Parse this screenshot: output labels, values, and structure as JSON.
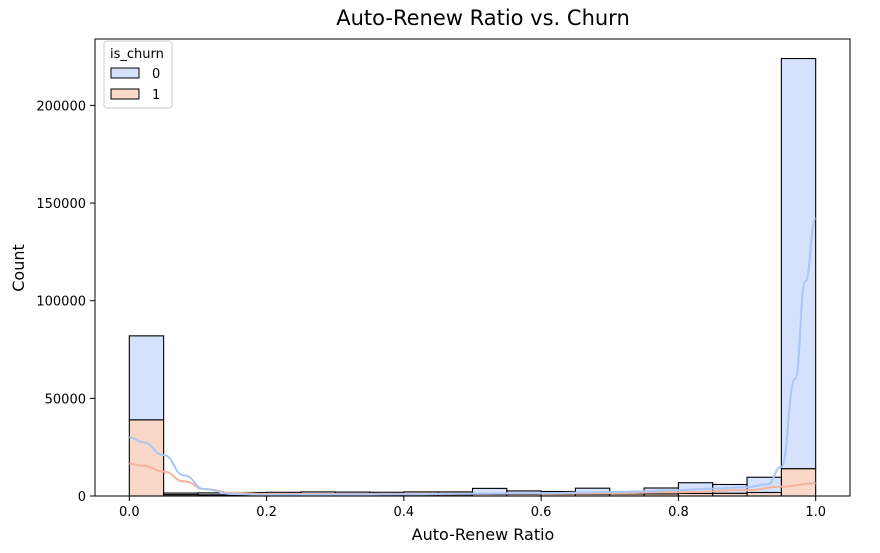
{
  "chart_data": {
    "type": "histogram",
    "title": "Auto-Renew Ratio vs. Churn",
    "xlabel": "Auto-Renew Ratio",
    "ylabel": "Count",
    "xlim": [
      -0.05,
      1.05
    ],
    "ylim": [
      0,
      234000
    ],
    "x_ticks": [
      0.0,
      0.2,
      0.4,
      0.6,
      0.8,
      1.0
    ],
    "x_tick_labels": [
      "0.0",
      "0.2",
      "0.4",
      "0.6",
      "0.8",
      "1.0"
    ],
    "y_ticks": [
      0,
      50000,
      100000,
      150000,
      200000
    ],
    "y_tick_labels": [
      "0",
      "50000",
      "100000",
      "150000",
      "200000"
    ],
    "stacked": true,
    "bins": [
      0.0,
      0.05,
      0.1,
      0.15,
      0.2,
      0.25,
      0.3,
      0.35,
      0.4,
      0.45,
      0.5,
      0.55,
      0.6,
      0.65,
      0.7,
      0.75,
      0.8,
      0.85,
      0.9,
      0.95,
      1.0
    ],
    "legend": {
      "title": "is_churn",
      "position": "upper-left"
    },
    "series": [
      {
        "name": "1",
        "fill": "#f9d7c9",
        "line": "#f4b49b",
        "values": [
          39000,
          700,
          600,
          500,
          500,
          500,
          500,
          600,
          700,
          700,
          900,
          900,
          1000,
          1000,
          1100,
          1100,
          1300,
          1400,
          1800,
          14000
        ],
        "kde": [
          [
            0.0,
            16500
          ],
          [
            0.02,
            15500
          ],
          [
            0.05,
            12500
          ],
          [
            0.08,
            7500
          ],
          [
            0.11,
            3500
          ],
          [
            0.15,
            1600
          ],
          [
            0.2,
            1100
          ],
          [
            0.3,
            1000
          ],
          [
            0.4,
            1100
          ],
          [
            0.5,
            1200
          ],
          [
            0.6,
            1300
          ],
          [
            0.7,
            1500
          ],
          [
            0.8,
            1900
          ],
          [
            0.9,
            3000
          ],
          [
            0.95,
            4800
          ],
          [
            1.0,
            6500
          ]
        ]
      },
      {
        "name": "0",
        "fill": "#d4e2fd",
        "line": "#abc6f5",
        "values": [
          43000,
          800,
          1000,
          1300,
          1400,
          1600,
          1500,
          1300,
          1400,
          1400,
          3000,
          1700,
          1300,
          3000,
          1000,
          3000,
          5500,
          4500,
          7800,
          210000
        ],
        "kde": [
          [
            0.0,
            30000
          ],
          [
            0.02,
            27500
          ],
          [
            0.05,
            21000
          ],
          [
            0.08,
            10500
          ],
          [
            0.11,
            3500
          ],
          [
            0.15,
            1000
          ],
          [
            0.2,
            600
          ],
          [
            0.3,
            700
          ],
          [
            0.4,
            900
          ],
          [
            0.5,
            1200
          ],
          [
            0.6,
            1500
          ],
          [
            0.7,
            2000
          ],
          [
            0.75,
            2400
          ],
          [
            0.8,
            3000
          ],
          [
            0.85,
            3800
          ],
          [
            0.9,
            4500
          ],
          [
            0.93,
            6000
          ],
          [
            0.95,
            15000
          ],
          [
            0.97,
            60000
          ],
          [
            0.985,
            110000
          ],
          [
            1.0,
            142000
          ]
        ]
      }
    ]
  }
}
